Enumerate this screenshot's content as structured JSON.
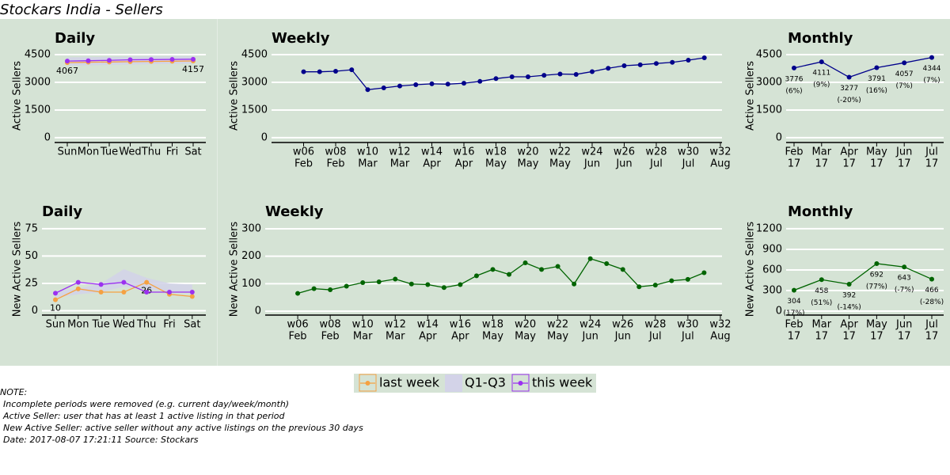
{
  "title": "Stockars India - Sellers",
  "notes": [
    "NOTE:",
    "Incomplete periods were removed (e.g. current day/week/month)",
    "Active Seller: user that has at least 1 active listing in that period",
    "New Active Seller: active seller without any active listings on the previous 30 days",
    "Date:  2017-08-07 17:21:11 Source: Stockars"
  ],
  "chart_data": [
    {
      "type": "band_line",
      "title": "Daily",
      "y_label": "Active Sellers",
      "categories": [
        "Sun",
        "Mon",
        "Tue",
        "Wed",
        "Thu",
        "Fri",
        "Sat"
      ],
      "series": [
        {
          "name": "last week",
          "color": "#f5a142",
          "values": [
            4067,
            4090,
            4100,
            4120,
            4130,
            4140,
            4157
          ],
          "label_points": [
            0,
            6
          ]
        },
        {
          "name": "Q1-Q3",
          "color": "#d3d3e8",
          "low": [
            3900,
            3920,
            3940,
            3960,
            3980,
            4000,
            4020
          ],
          "high": [
            4350,
            4360,
            4370,
            4380,
            4390,
            4400,
            4410
          ]
        },
        {
          "name": "this week",
          "color": "#9b30f0",
          "values": [
            4150,
            4170,
            4190,
            4220,
            4230,
            4240,
            4250
          ]
        }
      ],
      "ylim": [
        -260,
        4800
      ],
      "yticks": [
        0,
        1500,
        3000,
        4500
      ],
      "grid": true
    },
    {
      "type": "line",
      "title": "Weekly",
      "y_label": "Active Sellers",
      "x": [
        6,
        7,
        8,
        9,
        10,
        11,
        12,
        13,
        14,
        15,
        16,
        17,
        18,
        19,
        20,
        21,
        22,
        23,
        24,
        25,
        26,
        27,
        28,
        29,
        30,
        31
      ],
      "series": [
        {
          "color": "#00008b",
          "values": [
            3570,
            3570,
            3600,
            3680,
            2600,
            2700,
            2800,
            2870,
            2920,
            2900,
            2950,
            3050,
            3200,
            3300,
            3300,
            3380,
            3450,
            3430,
            3580,
            3760,
            3900,
            3950,
            4020,
            4080,
            4200,
            4330
          ]
        }
      ],
      "xlim": [
        4,
        32.1
      ],
      "xticks": [
        {
          "value": 6,
          "label": "w06",
          "sublabel": "Feb"
        },
        {
          "value": 8,
          "label": "w08",
          "sublabel": "Feb"
        },
        {
          "value": 10,
          "label": "w10",
          "sublabel": "Mar"
        },
        {
          "value": 12,
          "label": "w12",
          "sublabel": "Mar"
        },
        {
          "value": 14,
          "label": "w14",
          "sublabel": "Apr"
        },
        {
          "value": 16,
          "label": "w16",
          "sublabel": "Apr"
        },
        {
          "value": 18,
          "label": "w18",
          "sublabel": "May"
        },
        {
          "value": 20,
          "label": "w20",
          "sublabel": "May"
        },
        {
          "value": 22,
          "label": "w22",
          "sublabel": "May"
        },
        {
          "value": 24,
          "label": "w24",
          "sublabel": "Jun"
        },
        {
          "value": 26,
          "label": "w26",
          "sublabel": "Jun"
        },
        {
          "value": 28,
          "label": "w28",
          "sublabel": "Jul"
        },
        {
          "value": 30,
          "label": "w30",
          "sublabel": "Jul"
        },
        {
          "value": 32,
          "label": "w32",
          "sublabel": "Aug"
        }
      ],
      "ylim": [
        -260,
        4800
      ],
      "yticks": [
        0,
        1500,
        3000,
        4500
      ],
      "grid": true
    },
    {
      "type": "line",
      "title": "Monthly",
      "y_label": "Active Sellers",
      "categories": [
        "Feb",
        "Mar",
        "Apr",
        "May",
        "Jun",
        "Jul"
      ],
      "category_years": [
        "17",
        "17",
        "17",
        "17",
        "17",
        "17"
      ],
      "series": [
        {
          "color": "#00008b",
          "values": [
            3776,
            4111,
            3277,
            3791,
            4057,
            4344
          ],
          "change_labels": [
            "(6%)",
            "(9%)",
            "(-20%)",
            "(16%)",
            "(7%)",
            "(7%)"
          ]
        }
      ],
      "ylim": [
        -260,
        4800
      ],
      "yticks": [
        0,
        1500,
        3000,
        4500
      ],
      "grid": true
    },
    {
      "type": "band_line",
      "title": "Daily",
      "y_label": "New Active Sellers",
      "categories": [
        "Sun",
        "Mon",
        "Tue",
        "Wed",
        "Thu",
        "Fri",
        "Sat"
      ],
      "series": [
        {
          "name": "last week",
          "color": "#f5a142",
          "values": [
            10,
            20,
            17,
            17,
            26,
            15,
            13
          ],
          "label_points": [
            0,
            4
          ]
        },
        {
          "name": "Q1-Q3",
          "color": "#d3d3e8",
          "low": [
            12,
            15,
            17,
            22,
            20,
            18,
            17
          ],
          "high": [
            18,
            20,
            25,
            38,
            30,
            25,
            24
          ]
        },
        {
          "name": "this week",
          "color": "#9b30f0",
          "values": [
            16,
            26,
            24,
            26,
            17,
            17,
            17
          ]
        }
      ],
      "ylim": [
        -4,
        80
      ],
      "yticks": [
        0,
        25,
        50,
        75
      ],
      "grid": true
    },
    {
      "type": "line",
      "title": "Weekly",
      "y_label": "New Active Sellers",
      "x": [
        6,
        7,
        8,
        9,
        10,
        11,
        12,
        13,
        14,
        15,
        16,
        17,
        18,
        19,
        20,
        21,
        22,
        23,
        24,
        25,
        26,
        27,
        28,
        29,
        30,
        31
      ],
      "series": [
        {
          "color": "#006400",
          "values": [
            65,
            82,
            78,
            91,
            104,
            107,
            117,
            99,
            97,
            86,
            97,
            129,
            152,
            134,
            176,
            152,
            163,
            99,
            191,
            173,
            152,
            89,
            95,
            111,
            116,
            140
          ]
        }
      ],
      "xlim": [
        4,
        32.1
      ],
      "xticks": [
        {
          "value": 6,
          "label": "w06",
          "sublabel": "Feb"
        },
        {
          "value": 8,
          "label": "w08",
          "sublabel": "Feb"
        },
        {
          "value": 10,
          "label": "w10",
          "sublabel": "Mar"
        },
        {
          "value": 12,
          "label": "w12",
          "sublabel": "Mar"
        },
        {
          "value": 14,
          "label": "w14",
          "sublabel": "Apr"
        },
        {
          "value": 16,
          "label": "w16",
          "sublabel": "Apr"
        },
        {
          "value": 18,
          "label": "w18",
          "sublabel": "May"
        },
        {
          "value": 20,
          "label": "w20",
          "sublabel": "May"
        },
        {
          "value": 22,
          "label": "w22",
          "sublabel": "May"
        },
        {
          "value": 24,
          "label": "w24",
          "sublabel": "Jun"
        },
        {
          "value": 26,
          "label": "w26",
          "sublabel": "Jun"
        },
        {
          "value": 28,
          "label": "w28",
          "sublabel": "Jul"
        },
        {
          "value": 30,
          "label": "w30",
          "sublabel": "Jul"
        },
        {
          "value": 32,
          "label": "w32",
          "sublabel": "Aug"
        }
      ],
      "ylim": [
        -14,
        320
      ],
      "yticks": [
        0,
        100,
        200,
        300
      ],
      "grid": true
    },
    {
      "type": "line",
      "title": "Monthly",
      "y_label": "New Active Sellers",
      "categories": [
        "Feb",
        "Mar",
        "Apr",
        "May",
        "Jun",
        "Jul"
      ],
      "category_years": [
        "17",
        "17",
        "17",
        "17",
        "17",
        "17"
      ],
      "series": [
        {
          "color": "#006400",
          "values": [
            304,
            458,
            392,
            692,
            643,
            466
          ],
          "change_labels": [
            "(17%)",
            "(51%)",
            "(-14%)",
            "(77%)",
            "(-7%)",
            "(-28%)"
          ]
        }
      ],
      "ylim": [
        -58,
        1280
      ],
      "yticks": [
        0,
        300,
        600,
        900,
        1200
      ],
      "grid": true
    }
  ]
}
